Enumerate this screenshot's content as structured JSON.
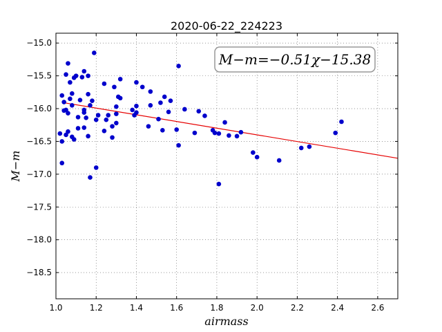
{
  "chart_data": {
    "type": "scatter",
    "title": "2020-06-22_224223",
    "xlabel": "airmass",
    "ylabel": "M−m",
    "annotation": "M−m=−0.51χ−15.38",
    "xlim": [
      1.0,
      2.7
    ],
    "ylim": [
      -18.9,
      -14.85
    ],
    "y_inverted": true,
    "grid": true,
    "x_ticks": [
      1.0,
      1.2,
      1.4,
      1.6,
      1.8,
      2.0,
      2.2,
      2.4,
      2.6
    ],
    "x_tick_labels": [
      "1.0",
      "1.2",
      "1.4",
      "1.6",
      "1.8",
      "2.0",
      "2.2",
      "2.4",
      "2.6"
    ],
    "y_ticks": [
      -15.0,
      -15.5,
      -16.0,
      -16.5,
      -17.0,
      -17.5,
      -18.0,
      -18.5
    ],
    "y_tick_labels": [
      "−15.0",
      "−15.5",
      "−16.0",
      "−16.5",
      "−17.0",
      "−17.5",
      "−18.0",
      "−18.5"
    ],
    "points": [
      {
        "x": 1.02,
        "y": -16.38
      },
      {
        "x": 1.03,
        "y": -16.5
      },
      {
        "x": 1.03,
        "y": -16.83
      },
      {
        "x": 1.03,
        "y": -15.8
      },
      {
        "x": 1.04,
        "y": -15.9
      },
      {
        "x": 1.04,
        "y": -16.03
      },
      {
        "x": 1.05,
        "y": -15.48
      },
      {
        "x": 1.05,
        "y": -16.02
      },
      {
        "x": 1.05,
        "y": -16.4
      },
      {
        "x": 1.06,
        "y": -16.35
      },
      {
        "x": 1.06,
        "y": -16.07
      },
      {
        "x": 1.06,
        "y": -15.31
      },
      {
        "x": 1.07,
        "y": -15.6
      },
      {
        "x": 1.07,
        "y": -15.85
      },
      {
        "x": 1.08,
        "y": -15.77
      },
      {
        "x": 1.08,
        "y": -15.95
      },
      {
        "x": 1.08,
        "y": -16.43
      },
      {
        "x": 1.09,
        "y": -16.47
      },
      {
        "x": 1.09,
        "y": -15.53
      },
      {
        "x": 1.1,
        "y": -15.5
      },
      {
        "x": 1.11,
        "y": -16.13
      },
      {
        "x": 1.11,
        "y": -16.3
      },
      {
        "x": 1.12,
        "y": -15.87
      },
      {
        "x": 1.13,
        "y": -15.52
      },
      {
        "x": 1.14,
        "y": -15.43
      },
      {
        "x": 1.14,
        "y": -16.02
      },
      {
        "x": 1.14,
        "y": -16.06
      },
      {
        "x": 1.14,
        "y": -16.29
      },
      {
        "x": 1.15,
        "y": -16.14
      },
      {
        "x": 1.16,
        "y": -15.5
      },
      {
        "x": 1.16,
        "y": -15.78
      },
      {
        "x": 1.16,
        "y": -16.42
      },
      {
        "x": 1.17,
        "y": -17.05
      },
      {
        "x": 1.17,
        "y": -15.95
      },
      {
        "x": 1.18,
        "y": -15.88
      },
      {
        "x": 1.19,
        "y": -15.15
      },
      {
        "x": 1.2,
        "y": -16.17
      },
      {
        "x": 1.2,
        "y": -16.9
      },
      {
        "x": 1.21,
        "y": -16.1
      },
      {
        "x": 1.24,
        "y": -15.62
      },
      {
        "x": 1.24,
        "y": -16.34
      },
      {
        "x": 1.25,
        "y": -16.17
      },
      {
        "x": 1.26,
        "y": -16.1
      },
      {
        "x": 1.28,
        "y": -16.27
      },
      {
        "x": 1.28,
        "y": -16.44
      },
      {
        "x": 1.29,
        "y": -15.67
      },
      {
        "x": 1.3,
        "y": -15.97
      },
      {
        "x": 1.3,
        "y": -16.08
      },
      {
        "x": 1.3,
        "y": -16.22
      },
      {
        "x": 1.31,
        "y": -15.82
      },
      {
        "x": 1.32,
        "y": -15.84
      },
      {
        "x": 1.32,
        "y": -15.55
      },
      {
        "x": 1.38,
        "y": -16.02
      },
      {
        "x": 1.39,
        "y": -16.1
      },
      {
        "x": 1.4,
        "y": -15.96
      },
      {
        "x": 1.4,
        "y": -16.06
      },
      {
        "x": 1.4,
        "y": -15.6
      },
      {
        "x": 1.43,
        "y": -15.67
      },
      {
        "x": 1.46,
        "y": -16.27
      },
      {
        "x": 1.47,
        "y": -15.74
      },
      {
        "x": 1.47,
        "y": -15.95
      },
      {
        "x": 1.51,
        "y": -16.16
      },
      {
        "x": 1.52,
        "y": -15.91
      },
      {
        "x": 1.53,
        "y": -16.33
      },
      {
        "x": 1.54,
        "y": -15.82
      },
      {
        "x": 1.56,
        "y": -16.05
      },
      {
        "x": 1.57,
        "y": -15.88
      },
      {
        "x": 1.6,
        "y": -16.32
      },
      {
        "x": 1.61,
        "y": -16.56
      },
      {
        "x": 1.61,
        "y": -15.35
      },
      {
        "x": 1.64,
        "y": -16.01
      },
      {
        "x": 1.69,
        "y": -16.37
      },
      {
        "x": 1.71,
        "y": -16.04
      },
      {
        "x": 1.74,
        "y": -16.11
      },
      {
        "x": 1.78,
        "y": -16.33
      },
      {
        "x": 1.79,
        "y": -16.37
      },
      {
        "x": 1.81,
        "y": -16.38
      },
      {
        "x": 1.81,
        "y": -17.15
      },
      {
        "x": 1.84,
        "y": -16.21
      },
      {
        "x": 1.86,
        "y": -16.41
      },
      {
        "x": 1.9,
        "y": -16.42
      },
      {
        "x": 1.92,
        "y": -16.36
      },
      {
        "x": 1.98,
        "y": -16.67
      },
      {
        "x": 2.0,
        "y": -16.74
      },
      {
        "x": 2.11,
        "y": -16.79
      },
      {
        "x": 2.22,
        "y": -16.6
      },
      {
        "x": 2.26,
        "y": -16.58
      },
      {
        "x": 2.39,
        "y": -16.37
      },
      {
        "x": 2.42,
        "y": -16.2
      }
    ],
    "fit_line": {
      "slope": -0.51,
      "intercept": -15.38
    },
    "colors": {
      "points": "#0000cc",
      "fit": "#e60000",
      "grid": "#555555"
    }
  }
}
